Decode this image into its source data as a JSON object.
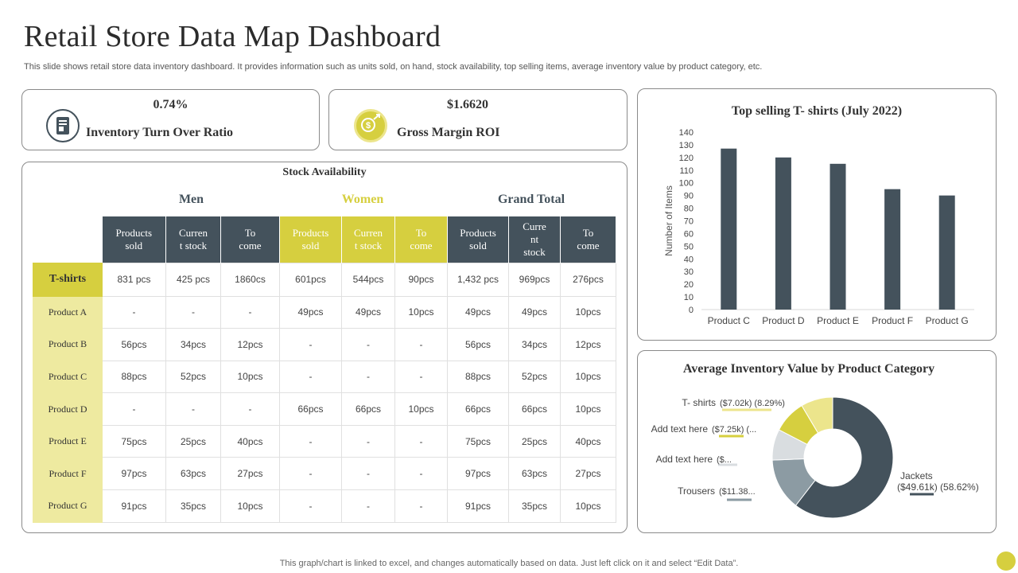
{
  "header": {
    "title": "Retail Store Data Map Dashboard",
    "subtitle": "This slide shows retail store data inventory dashboard. It provides information such as units sold, on hand, stock availability, top selling items, average inventory value by product category, etc."
  },
  "kpis": [
    {
      "value": "0.74%",
      "label": "Inventory Turn Over Ratio",
      "icon": "report-icon"
    },
    {
      "value": "$1.6620",
      "label": "Gross Margin ROI",
      "icon": "money-growth-icon"
    }
  ],
  "stock": {
    "title": "Stock Availability",
    "groups": [
      "Men",
      "Women",
      "Grand Total"
    ],
    "columns": [
      [
        "Products",
        "sold"
      ],
      [
        "Curren",
        "t stock"
      ],
      [
        "To",
        "come"
      ],
      [
        "Products",
        "sold"
      ],
      [
        "Curren",
        "t stock"
      ],
      [
        "To",
        "come"
      ],
      [
        "Products",
        "sold"
      ],
      [
        "Curre",
        "nt",
        "stock"
      ],
      [
        "To",
        "come"
      ]
    ],
    "rows": [
      {
        "label": "T-shirts",
        "cells": [
          "831 pcs",
          "425 pcs",
          "1860cs",
          "601pcs",
          "544pcs",
          "90pcs",
          "1,432 pcs",
          "969pcs",
          "276pcs"
        ]
      },
      {
        "label": "Product A",
        "cells": [
          "-",
          "-",
          "-",
          "49pcs",
          "49pcs",
          "10pcs",
          "49pcs",
          "49pcs",
          "10pcs"
        ]
      },
      {
        "label": "Product B",
        "cells": [
          "56pcs",
          "34pcs",
          "12pcs",
          "-",
          "-",
          "-",
          "56pcs",
          "34pcs",
          "12pcs"
        ]
      },
      {
        "label": "Product C",
        "cells": [
          "88pcs",
          "52pcs",
          "10pcs",
          "-",
          "-",
          "-",
          "88pcs",
          "52pcs",
          "10pcs"
        ]
      },
      {
        "label": "Product D",
        "cells": [
          "-",
          "-",
          "-",
          "66pcs",
          "66pcs",
          "10pcs",
          "66pcs",
          "66pcs",
          "10pcs"
        ]
      },
      {
        "label": "Product E",
        "cells": [
          "75pcs",
          "25pcs",
          "40pcs",
          "-",
          "-",
          "-",
          "75pcs",
          "25pcs",
          "40pcs"
        ]
      },
      {
        "label": "Product F",
        "cells": [
          "97pcs",
          "63pcs",
          "27pcs",
          "-",
          "-",
          "-",
          "97pcs",
          "63pcs",
          "27pcs"
        ]
      },
      {
        "label": "Product G",
        "cells": [
          "91pcs",
          "35pcs",
          "10pcs",
          "-",
          "-",
          "-",
          "91pcs",
          "35pcs",
          "10pcs"
        ]
      }
    ]
  },
  "colors": {
    "dark": "#44525c",
    "accent": "#d6cf3f",
    "accent_light": "#eeeaa0",
    "slate": "#8c9ba3",
    "light_gray": "#d9dde0",
    "pale_yellow": "#ece58c"
  },
  "chart_data": [
    {
      "type": "bar",
      "title": "Top selling T- shirts (July 2022)",
      "categories": [
        "Product C",
        "Product D",
        "Product E",
        "Product F",
        "Product G"
      ],
      "values": [
        127,
        120,
        115,
        95,
        90
      ],
      "xlabel": "",
      "ylabel": "Number of Items",
      "ylim": [
        0,
        140
      ],
      "yticks": [
        0,
        10,
        20,
        30,
        40,
        50,
        60,
        70,
        80,
        90,
        100,
        110,
        120,
        130,
        140
      ],
      "grid": false
    },
    {
      "type": "pie",
      "donut": true,
      "title": "Average Inventory Value by Product Category",
      "slices": [
        {
          "name": "Jackets",
          "value": 58.62,
          "label": "($49.61k)",
          "pct_label": "(58.62%)"
        },
        {
          "name": "Trousers",
          "value": 13.45,
          "label": "($11.38..."
        },
        {
          "name": "Add text here",
          "value": 8.0,
          "label": "($..."
        },
        {
          "name": "Add text here",
          "value": 8.57,
          "label": "($7.25k) (..."
        },
        {
          "name": "T- shirts",
          "value": 8.29,
          "label": "($7.02k)",
          "pct_label": "(8.29%)"
        }
      ]
    }
  ],
  "footer": "This graph/chart is linked to excel,  and changes automatically based on data. Just left click on it and select “Edit Data”."
}
